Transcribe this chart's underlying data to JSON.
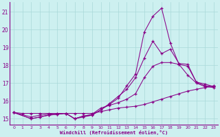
{
  "xlabel": "Windchill (Refroidissement éolien,°C)",
  "background_color": "#cdf0f0",
  "grid_color": "#a8d8d8",
  "line_color": "#880088",
  "xlim": [
    -0.5,
    23.5
  ],
  "ylim": [
    14.65,
    21.55
  ],
  "yticks": [
    15,
    16,
    17,
    18,
    19,
    20,
    21
  ],
  "xticks": [
    0,
    1,
    2,
    3,
    4,
    5,
    6,
    7,
    8,
    9,
    10,
    11,
    12,
    13,
    14,
    15,
    16,
    17,
    18,
    19,
    20,
    21,
    22,
    23
  ],
  "line1_x": [
    0,
    1,
    2,
    3,
    4,
    5,
    6,
    7,
    8,
    9,
    10,
    11,
    12,
    13,
    14,
    15,
    16,
    17,
    18,
    19,
    20,
    21,
    22,
    23
  ],
  "line1_y": [
    15.35,
    15.3,
    15.3,
    15.3,
    15.3,
    15.3,
    15.3,
    15.3,
    15.3,
    15.3,
    15.4,
    15.5,
    15.6,
    15.65,
    15.7,
    15.8,
    15.95,
    16.1,
    16.25,
    16.4,
    16.55,
    16.65,
    16.75,
    16.85
  ],
  "line2_x": [
    0,
    2,
    3,
    4,
    5,
    6,
    7,
    8,
    9,
    10,
    11,
    12,
    13,
    14,
    15,
    16,
    17,
    18,
    19,
    20,
    21,
    22,
    23
  ],
  "line2_y": [
    15.35,
    15.1,
    15.2,
    15.25,
    15.3,
    15.3,
    15.0,
    15.15,
    15.25,
    15.6,
    15.75,
    15.9,
    16.1,
    16.4,
    17.3,
    17.95,
    18.15,
    18.15,
    18.05,
    17.95,
    17.05,
    16.85,
    16.8
  ],
  "line3_x": [
    0,
    2,
    3,
    4,
    5,
    6,
    7,
    8,
    9,
    10,
    11,
    12,
    13,
    14,
    15,
    16,
    17,
    18,
    19,
    20,
    21,
    22,
    23
  ],
  "line3_y": [
    15.35,
    15.0,
    15.1,
    15.2,
    15.25,
    15.3,
    15.0,
    15.1,
    15.2,
    15.5,
    15.85,
    16.25,
    16.65,
    17.3,
    18.4,
    19.35,
    18.65,
    18.9,
    18.1,
    18.05,
    17.05,
    16.95,
    16.8
  ],
  "line4_x": [
    0,
    2,
    3,
    4,
    5,
    6,
    7,
    8,
    9,
    10,
    11,
    12,
    13,
    14,
    15,
    16,
    17,
    18,
    19,
    20,
    21,
    22,
    23
  ],
  "line4_y": [
    15.35,
    15.0,
    15.1,
    15.2,
    15.25,
    15.3,
    15.0,
    15.15,
    15.2,
    15.5,
    15.8,
    16.15,
    16.85,
    17.5,
    19.85,
    20.75,
    21.2,
    19.25,
    18.05,
    17.45,
    17.0,
    16.8,
    16.75
  ]
}
